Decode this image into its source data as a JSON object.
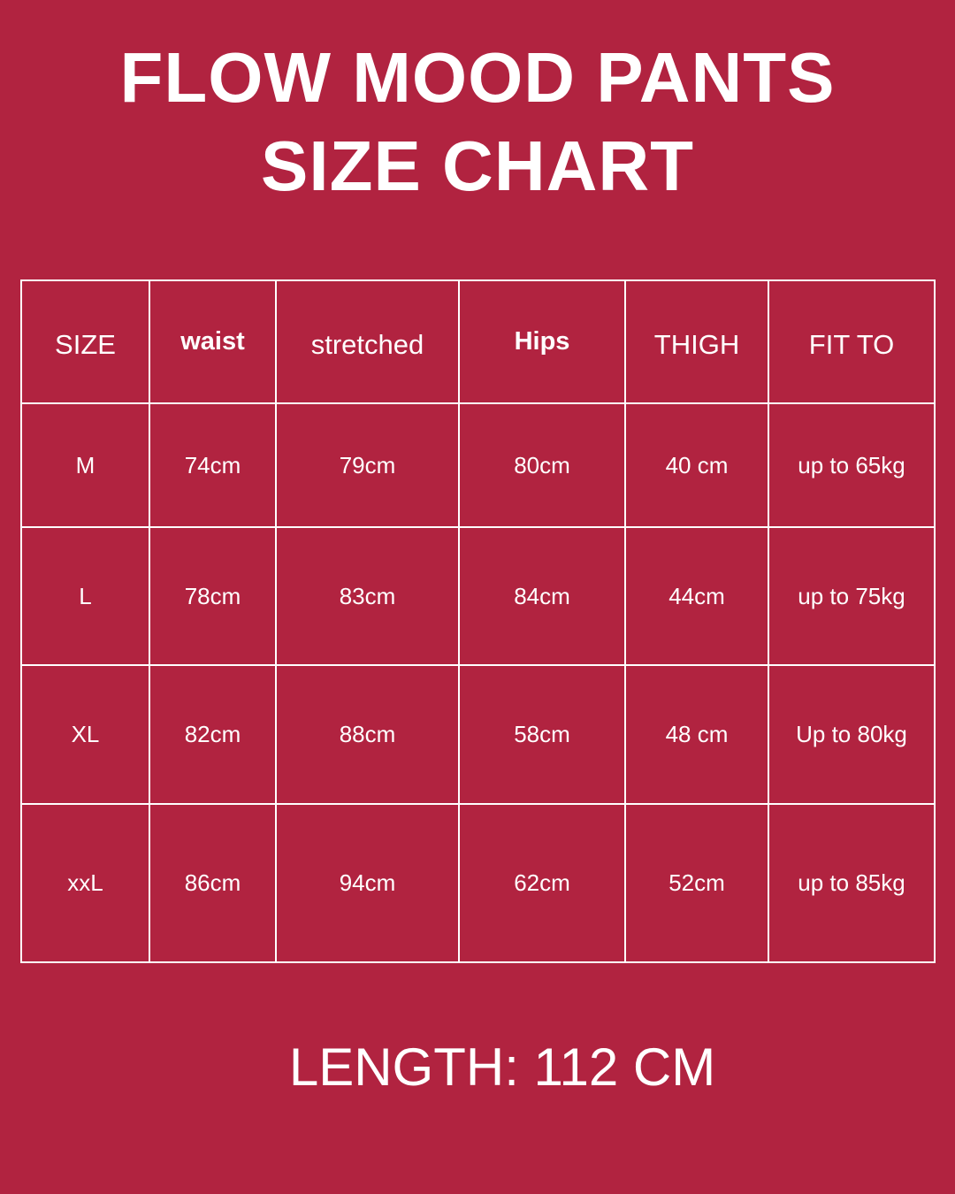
{
  "title_line1": "FLOW MOOD PANTS",
  "title_line2": "SIZE CHART",
  "table": {
    "headers": [
      "SIZE",
      "waist",
      "stretched",
      "Hips",
      "THIGH",
      "FIT TO"
    ],
    "rows": [
      [
        "M",
        "74cm",
        "79cm",
        "80cm",
        "40 cm",
        "up to 65kg"
      ],
      [
        "L",
        "78cm",
        "83cm",
        "84cm",
        "44cm",
        "up to 75kg"
      ],
      [
        "XL",
        "82cm",
        "88cm",
        "58cm",
        "48 cm",
        "Up to 80kg"
      ],
      [
        "xxL",
        "86cm",
        "94cm",
        "62cm",
        "52cm",
        "up to 85kg"
      ]
    ]
  },
  "footer": "LENGTH: 112 CM",
  "colors": {
    "background": "#B12340",
    "text": "#FFFFFF"
  }
}
